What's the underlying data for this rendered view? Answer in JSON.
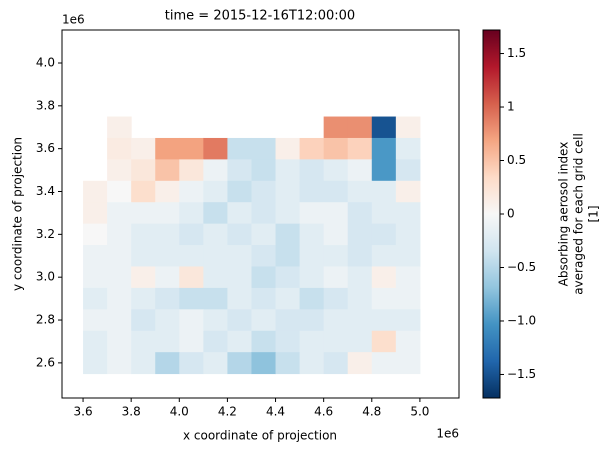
{
  "chart_data": {
    "type": "heatmap",
    "title": "time = 2015-12-16T12:00:00",
    "x_label": "x coordinate of projection",
    "y_label": "y coordinate of projection",
    "x_offset_label": "1e6",
    "y_offset_label": "1e6",
    "xlim": [
      3512500,
      5162500
    ],
    "ylim": [
      2436000,
      4154000
    ],
    "xticks": [
      {
        "value": 3600000,
        "label": "3.6"
      },
      {
        "value": 3800000,
        "label": "3.8"
      },
      {
        "value": 4000000,
        "label": "4.0"
      },
      {
        "value": 4200000,
        "label": "4.2"
      },
      {
        "value": 4400000,
        "label": "4.4"
      },
      {
        "value": 4600000,
        "label": "4.6"
      },
      {
        "value": 4800000,
        "label": "4.8"
      },
      {
        "value": 5000000,
        "label": "5.0"
      }
    ],
    "yticks": [
      {
        "value": 2600000,
        "label": "2.6"
      },
      {
        "value": 2800000,
        "label": "2.8"
      },
      {
        "value": 3000000,
        "label": "3.0"
      },
      {
        "value": 3200000,
        "label": "3.2"
      },
      {
        "value": 3400000,
        "label": "3.4"
      },
      {
        "value": 3600000,
        "label": "3.6"
      },
      {
        "value": 3800000,
        "label": "3.8"
      },
      {
        "value": 4000000,
        "label": "4.0"
      }
    ],
    "x_edges": [
      3600000,
      3700000,
      3800000,
      3900000,
      4000000,
      4100000,
      4200000,
      4300000,
      4400000,
      4500000,
      4600000,
      4700000,
      4800000,
      4900000,
      5000000
    ],
    "y_edges": [
      3750000,
      3650000,
      3550000,
      3450000,
      3350000,
      3250000,
      3150000,
      3050000,
      2950000,
      2850000,
      2750000,
      2650000,
      2550000
    ],
    "values": [
      [
        null,
        0.1,
        null,
        null,
        null,
        null,
        null,
        null,
        null,
        null,
        0.8,
        0.8,
        -1.5,
        0.1
      ],
      [
        null,
        0.15,
        0.1,
        0.7,
        0.7,
        0.9,
        -0.4,
        -0.4,
        0.1,
        0.4,
        0.5,
        0.4,
        -1.0,
        -0.2
      ],
      [
        null,
        0.1,
        0.2,
        0.5,
        0.2,
        -0.1,
        -0.3,
        -0.4,
        -0.2,
        -0.3,
        -0.2,
        -0.1,
        -1.0,
        -0.3
      ],
      [
        0.1,
        0,
        0.3,
        0.1,
        -0.1,
        -0.2,
        -0.4,
        -0.3,
        -0.2,
        -0.3,
        -0.3,
        -0.2,
        -0.2,
        0.1
      ],
      [
        0.1,
        -0.1,
        -0.1,
        -0.1,
        -0.2,
        -0.4,
        -0.2,
        -0.3,
        -0.2,
        -0.1,
        -0.1,
        -0.3,
        -0.2,
        -0.2
      ],
      [
        0,
        -0.1,
        -0.2,
        -0.2,
        -0.3,
        -0.2,
        -0.3,
        -0.2,
        -0.4,
        -0.2,
        -0.1,
        -0.3,
        -0.3,
        -0.2
      ],
      [
        -0.1,
        -0.1,
        -0.2,
        -0.2,
        -0.2,
        -0.2,
        -0.2,
        -0.3,
        -0.4,
        -0.2,
        -0.2,
        -0.3,
        -0.2,
        -0.2
      ],
      [
        -0.1,
        -0.1,
        0.1,
        -0.1,
        0.2,
        -0.2,
        -0.2,
        -0.4,
        -0.3,
        -0.2,
        -0.1,
        -0.2,
        0.1,
        -0.1
      ],
      [
        -0.2,
        -0.1,
        -0.2,
        -0.3,
        -0.4,
        -0.4,
        -0.2,
        -0.3,
        -0.2,
        -0.4,
        -0.3,
        -0.2,
        -0.1,
        -0.1
      ],
      [
        -0.1,
        -0.1,
        -0.3,
        -0.2,
        -0.1,
        -0.2,
        -0.3,
        -0.2,
        -0.3,
        -0.3,
        -0.2,
        -0.2,
        -0.2,
        -0.2
      ],
      [
        -0.2,
        -0.1,
        -0.2,
        -0.2,
        -0.1,
        -0.3,
        -0.2,
        -0.4,
        -0.3,
        -0.2,
        -0.2,
        -0.2,
        0.3,
        -0.1
      ],
      [
        -0.2,
        -0.1,
        -0.2,
        -0.5,
        -0.3,
        -0.2,
        -0.5,
        -0.7,
        -0.4,
        -0.2,
        -0.3,
        0.1,
        -0.1,
        -0.1
      ]
    ],
    "colormap": "RdBu_r",
    "colorbar": {
      "clim": [
        -1.72,
        1.72
      ],
      "ticks": [
        {
          "value": -1.5,
          "label": "−1.5"
        },
        {
          "value": -1.0,
          "label": "−1.0"
        },
        {
          "value": -0.5,
          "label": "−0.5"
        },
        0.0,
        0.5,
        1.0,
        1.5
      ],
      "label": [
        "Absorbing aerosol index",
        "averaged for each grid cell",
        "[1]"
      ]
    }
  }
}
